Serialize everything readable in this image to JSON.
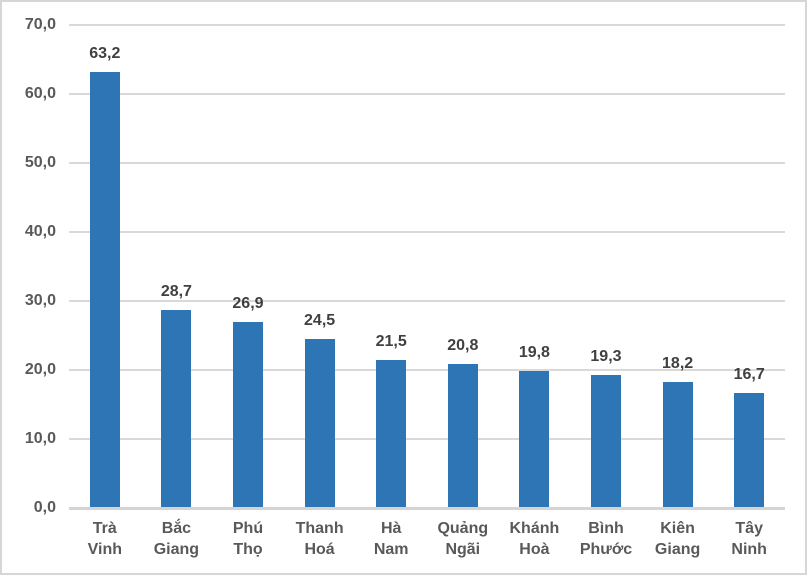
{
  "window": {
    "background": "#ffffff",
    "border_color": "#d6d6d6"
  },
  "chart_data": {
    "type": "bar",
    "title": "",
    "xlabel": "",
    "ylabel": "",
    "categories": [
      "Trà Vinh",
      "Bắc Giang",
      "Phú Thọ",
      "Thanh Hoá",
      "Hà Nam",
      "Quảng Ngãi",
      "Khánh Hoà",
      "Bình Phước",
      "Kiên Giang",
      "Tây Ninh"
    ],
    "values": [
      63.2,
      28.7,
      26.9,
      24.5,
      21.5,
      20.8,
      19.8,
      19.3,
      18.2,
      16.7
    ],
    "value_labels": [
      "63,2",
      "28,7",
      "26,9",
      "24,5",
      "21,5",
      "20,8",
      "19,8",
      "19,3",
      "18,2",
      "16,7"
    ],
    "y_ticks": [
      {
        "value": 0,
        "label": "0,0"
      },
      {
        "value": 10,
        "label": "10,0"
      },
      {
        "value": 20,
        "label": "20,0"
      },
      {
        "value": 30,
        "label": "30,0"
      },
      {
        "value": 40,
        "label": "40,0"
      },
      {
        "value": 50,
        "label": "50,0"
      },
      {
        "value": 60,
        "label": "60,0"
      },
      {
        "value": 70,
        "label": "70,0"
      }
    ],
    "ylim": [
      0,
      70
    ],
    "grid": true,
    "legend": "none",
    "number_format": "decimal-comma",
    "colors": {
      "bar": "#2E75B6",
      "gridline": "#D9D9D9",
      "axis_line": "#D4D4D4",
      "y_tick_label": "#595959",
      "category_label": "#595959",
      "value_label": "#404040"
    }
  }
}
